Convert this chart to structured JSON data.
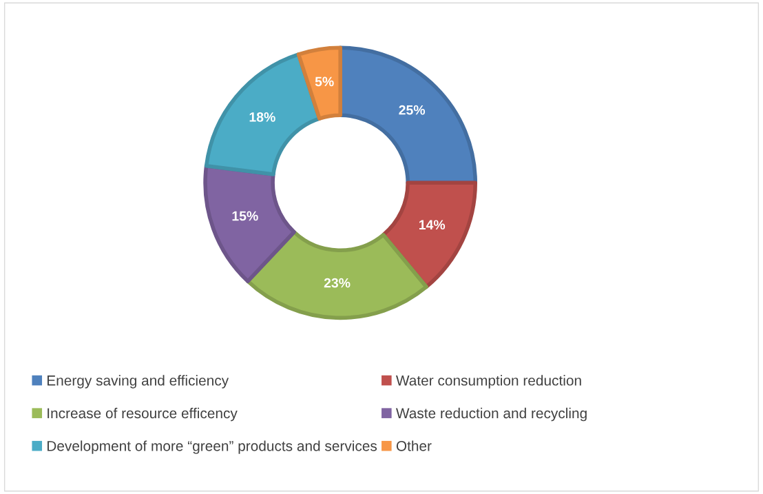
{
  "chart_data": {
    "type": "donut",
    "categories": [
      "Energy saving and efficiency",
      "Water consumption reduction",
      "Increase of resource efficency",
      "Waste reduction and recycling",
      "Development of more “green” products and services",
      "Other"
    ],
    "values": [
      25,
      14,
      23,
      15,
      18,
      5
    ],
    "colors": [
      "#4f81bd",
      "#c0504d",
      "#9bbb59",
      "#8064a2",
      "#4bacc6",
      "#f79646"
    ],
    "value_labels": [
      "25%",
      "14%",
      "23%",
      "15%",
      "18%",
      "5%"
    ],
    "legend": "bottom"
  }
}
